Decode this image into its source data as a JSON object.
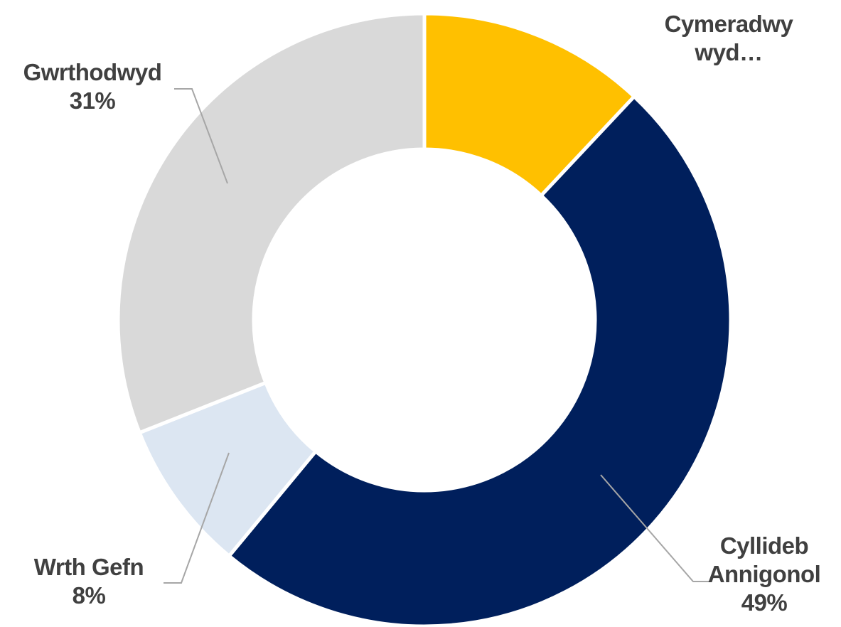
{
  "chart_data": {
    "type": "donut",
    "categories": [
      "Cymeradwywyd…",
      "Cyllideb Annigonol",
      "Wrth Gefn",
      "Gwrthodwyd"
    ],
    "values": [
      12,
      49,
      8,
      31
    ],
    "value_labels": [
      null,
      "49%",
      "8%",
      "31%"
    ],
    "colors": [
      "#ffc000",
      "#001f5c",
      "#dce6f2",
      "#d9d9d9"
    ]
  }
}
